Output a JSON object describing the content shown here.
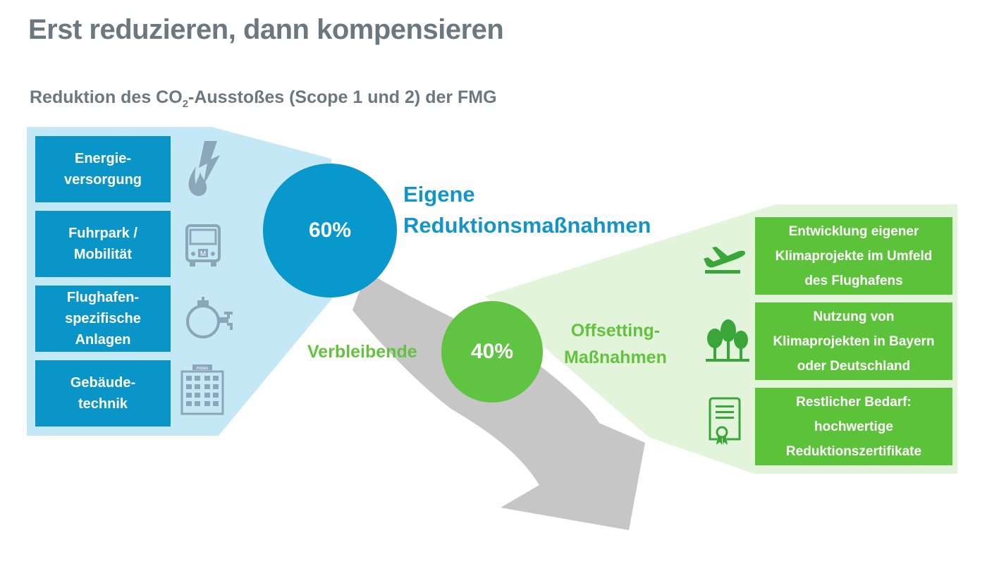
{
  "title": "Erst reduzieren, dann kompensieren",
  "subtitle": {
    "before": "Reduktion des CO",
    "sub": "2",
    "after": "-Ausstoßes (Scope 1 und 2) der FMG"
  },
  "reduction_categories": [
    {
      "label": "Energie-\nversorgung",
      "icon": "flame-lightning-icon"
    },
    {
      "label": "Fuhrpark /\nMobilität",
      "icon": "bus-icon"
    },
    {
      "label": "Flughafen-\nspezifische\nAnlagen",
      "icon": "pipe-valve-icon"
    },
    {
      "label": "Gebäude-\ntechnik",
      "icon": "hotel-building-icon"
    }
  ],
  "own_reduction": {
    "percent": "60%",
    "label": "Eigene\nReduktionsmaßnahmen"
  },
  "remaining": {
    "percent": "40%",
    "label": "Verbleibende"
  },
  "offsetting": {
    "label": "Offsetting-\nMaßnahmen"
  },
  "offsetting_measures": [
    {
      "label": "Entwicklung eigener\nKlimaprojekte im Umfeld\ndes Flughafens",
      "icon": "airplane-icon"
    },
    {
      "label": "Nutzung von\nKlimaprojekten in Bayern\noder Deutschland",
      "icon": "trees-icon"
    },
    {
      "label": "Restlicher Bedarf:\nhochwertige\nReduktionszertifikate",
      "icon": "certificate-icon"
    }
  ],
  "icon_texts": {
    "hotel_sign": "Hotels",
    "bus_sign": "M"
  },
  "colors": {
    "blue_box": "#0a95c8",
    "blue_panel": "#c5e8f7",
    "circle_blue": "#0898cb",
    "green_box": "#5cc23a",
    "green_panel": "#e2f4da",
    "circle_green": "#60c342",
    "arrow_gray": "#c6c6c6",
    "icon_gray": "#8aa6b8",
    "icon_green": "#3aa63a"
  }
}
